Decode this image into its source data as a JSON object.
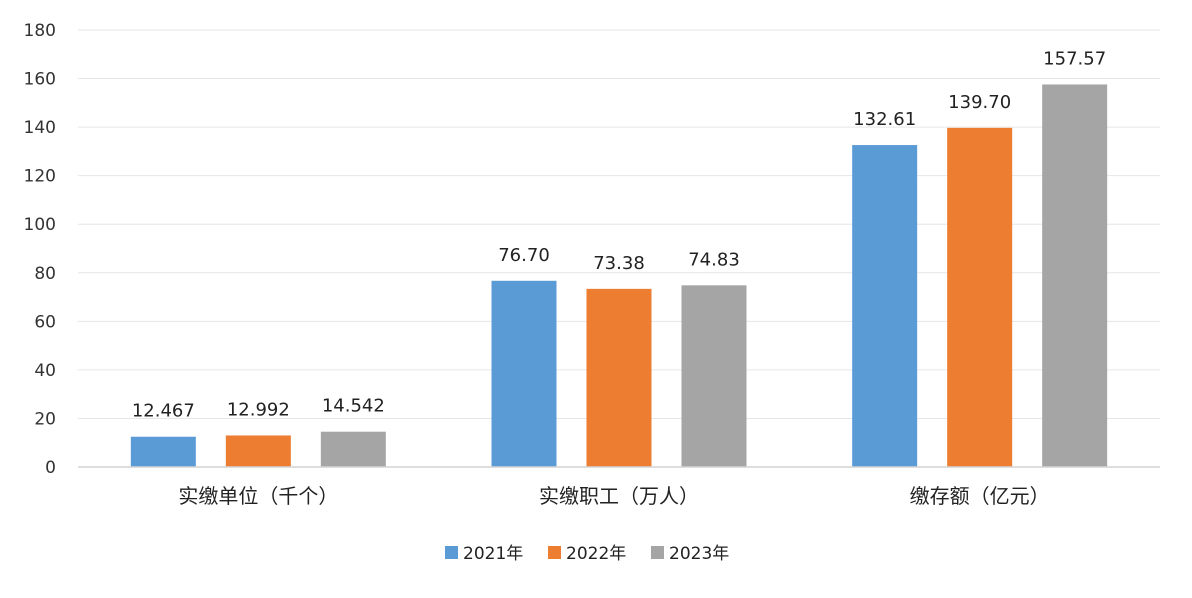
{
  "chart_data": {
    "type": "bar",
    "title": "",
    "xlabel": "",
    "ylabel": "",
    "ylim": [
      0,
      180
    ],
    "yticks": [
      0,
      20,
      40,
      60,
      80,
      100,
      120,
      140,
      160,
      180
    ],
    "grid": true,
    "legend_position": "bottom",
    "categories": [
      "实缴单位（千个）",
      "实缴职工（万人）",
      "缴存额（亿元）"
    ],
    "series": [
      {
        "name": "2021年",
        "color": "#5B9BD5",
        "values": [
          12.467,
          76.7,
          132.61
        ],
        "labels": [
          "12.467",
          "76.70",
          "132.61"
        ]
      },
      {
        "name": "2022年",
        "color": "#ED7D31",
        "values": [
          12.992,
          73.38,
          139.7
        ],
        "labels": [
          "12.992",
          "73.38",
          "139.70"
        ]
      },
      {
        "name": "2023年",
        "color": "#A5A5A5",
        "values": [
          14.542,
          74.83,
          157.57
        ],
        "labels": [
          "14.542",
          "74.83",
          "157.57"
        ]
      }
    ]
  }
}
